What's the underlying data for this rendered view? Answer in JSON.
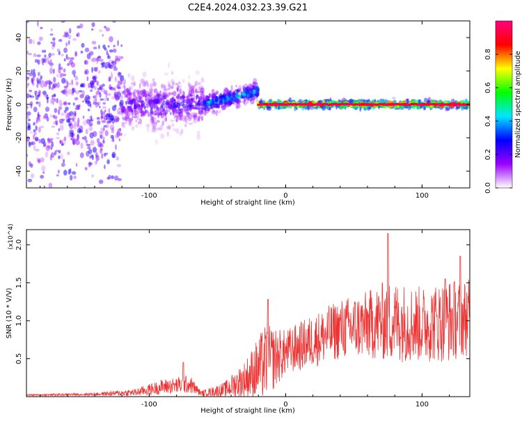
{
  "title": "C2E4.2024.032.23.39.G21",
  "chart_data": [
    {
      "type": "heatmap",
      "xlabel": "Height of straight line (km)",
      "ylabel": "Frequency (Hz)",
      "xlim": [
        -190,
        135
      ],
      "ylim": [
        -50,
        50
      ],
      "xticks": [
        -100,
        0,
        100
      ],
      "yticks": [
        -40,
        -20,
        0,
        20,
        40
      ],
      "colorbar": {
        "label": "Normalized spectral amplitude",
        "range": [
          0,
          1
        ],
        "ticks": [
          "0.0",
          "0.2",
          "0.4",
          "0.6",
          "0.8"
        ],
        "colors": [
          "#ffffff",
          "#9b00ff",
          "#0000ff",
          "#00e5ff",
          "#00ff00",
          "#ffff00",
          "#ff0000",
          "#ff0080"
        ]
      },
      "regions": [
        {
          "x_range": [
            -190,
            -120
          ],
          "freq_spread_hz": 50,
          "amplitude": 0.12
        },
        {
          "x_range": [
            -120,
            -60
          ],
          "freq_spread_hz": 15,
          "amplitude": 0.25
        },
        {
          "x_range": [
            -60,
            -20
          ],
          "freq_center_rise_hz": [
            0,
            8
          ],
          "freq_spread_hz": 5,
          "amplitude": 0.45
        },
        {
          "x_range": [
            -20,
            135
          ],
          "freq_center_hz": 0,
          "freq_spread_hz": 2,
          "amplitude": 0.95
        }
      ]
    },
    {
      "type": "line",
      "xlabel": "Height of straight line (km)",
      "ylabel": "SNR (10 * V/V)",
      "y_multiplier": "(x10^4)",
      "xlim": [
        -190,
        135
      ],
      "ylim": [
        0,
        2.2
      ],
      "xticks": [
        -100,
        0,
        100
      ],
      "yticks": [
        "0.5",
        "1.0",
        "1.5",
        "2.0"
      ],
      "color": "#ee3333",
      "envelope": [
        {
          "x": -190,
          "base": 0.02,
          "amp": 0.01
        },
        {
          "x": -140,
          "base": 0.03,
          "amp": 0.02
        },
        {
          "x": -110,
          "base": 0.05,
          "amp": 0.05
        },
        {
          "x": -90,
          "base": 0.12,
          "amp": 0.1
        },
        {
          "x": -70,
          "base": 0.15,
          "amp": 0.12
        },
        {
          "x": -62,
          "base": 0.04,
          "amp": 0.03
        },
        {
          "x": -45,
          "base": 0.08,
          "amp": 0.1
        },
        {
          "x": -30,
          "base": 0.2,
          "amp": 0.25
        },
        {
          "x": -15,
          "base": 0.4,
          "amp": 0.5
        },
        {
          "x": 0,
          "base": 0.55,
          "amp": 0.3
        },
        {
          "x": 20,
          "base": 0.7,
          "amp": 0.35
        },
        {
          "x": 40,
          "base": 0.85,
          "amp": 0.4
        },
        {
          "x": 60,
          "base": 0.9,
          "amp": 0.45
        },
        {
          "x": 75,
          "base": 0.95,
          "amp": 0.55
        },
        {
          "x": 100,
          "base": 0.9,
          "amp": 0.5
        },
        {
          "x": 120,
          "base": 0.95,
          "amp": 0.55
        },
        {
          "x": 135,
          "base": 1.0,
          "amp": 0.5
        }
      ],
      "peaks": [
        {
          "x": -75,
          "y": 0.45
        },
        {
          "x": -13,
          "y": 1.28
        },
        {
          "x": 75,
          "y": 2.15
        },
        {
          "x": 117,
          "y": 1.55
        },
        {
          "x": 128,
          "y": 1.85
        }
      ]
    }
  ]
}
